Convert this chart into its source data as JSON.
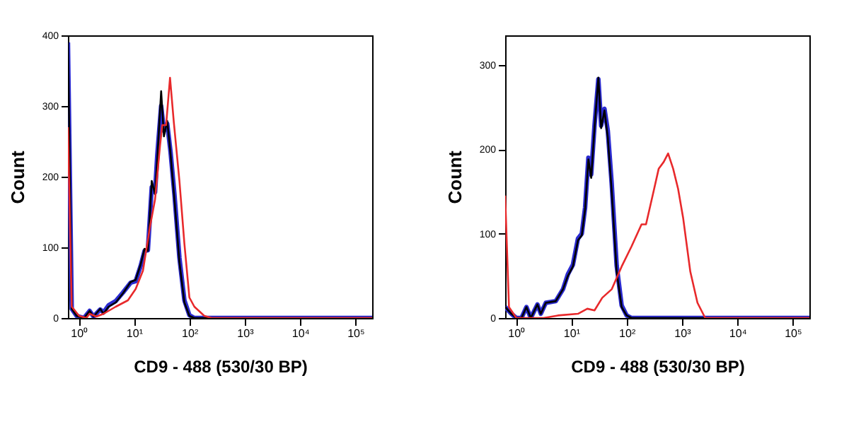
{
  "chart_data": [
    {
      "type": "line",
      "xlabel": "CD9 - 488 (530/30 BP)",
      "ylabel": "Count",
      "log": "x",
      "xlim": [
        0.64,
        200000
      ],
      "ylim": [
        0,
        400
      ],
      "xticks": [
        {
          "value": 1,
          "label": "10⁰"
        },
        {
          "value": 10,
          "label": "10¹"
        },
        {
          "value": 100,
          "label": "10²"
        },
        {
          "value": 1000,
          "label": "10³"
        },
        {
          "value": 10000,
          "label": "10⁴"
        },
        {
          "value": 100000,
          "label": "10⁵"
        }
      ],
      "yticks": [
        0,
        100,
        200,
        300,
        400
      ],
      "grid": false,
      "marker": "none",
      "line_style": "solid",
      "series": [
        {
          "color": "#2b2bd0",
          "x": [
            0.64,
            0.75,
            0.92,
            1.25,
            1.58,
            1.86,
            2.45,
            2.82,
            3.47,
            4.68,
            6.31,
            8.71,
            10.7,
            13.2,
            15.5,
            17.8,
            20.9,
            24.0,
            26.3,
            30.9,
            34.7,
            39.8,
            45.7,
            53.7,
            66.1,
            81.3,
            100,
            123,
            200000
          ],
          "values": [
            390,
            13,
            3,
            0,
            10,
            2,
            12,
            8,
            18,
            24,
            36,
            50,
            52,
            74,
            95,
            96,
            185,
            178,
            230,
            300,
            265,
            275,
            235,
            175,
            85,
            25,
            4,
            0,
            0
          ]
        },
        {
          "color": "#000000",
          "x": [
            0.64,
            0.75,
            0.92,
            1.25,
            1.58,
            1.86,
            2.45,
            2.82,
            3.47,
            4.68,
            6.31,
            8.71,
            10.7,
            13.2,
            15.5,
            17.8,
            20.9,
            24.0,
            26.3,
            30.9,
            34.7,
            39.8,
            45.7,
            53.7,
            66.1,
            81.3,
            100,
            123,
            200000
          ],
          "values": [
            397,
            13,
            3,
            0,
            10,
            2,
            13,
            6,
            16,
            22,
            35,
            51,
            54,
            76,
            98,
            95,
            194,
            175,
            225,
            321,
            257,
            279,
            232,
            168,
            79,
            22,
            3,
            0,
            0
          ]
        },
        {
          "color": "#e8292b",
          "x": [
            0.64,
            0.75,
            1.02,
            1.38,
            1.58,
            2.09,
            2.82,
            4.68,
            7.76,
            10.7,
            14.5,
            19.5,
            24.0,
            29.5,
            32.4,
            38.0,
            44.7,
            52.5,
            66.1,
            81.3,
            100,
            123,
            186,
            251,
            200000
          ],
          "values": [
            270,
            16,
            3,
            0,
            6,
            2,
            6,
            16,
            25,
            41,
            67,
            130,
            168,
            244,
            273,
            273,
            340,
            276,
            194,
            105,
            29,
            16,
            3,
            0,
            0
          ]
        }
      ]
    },
    {
      "type": "line",
      "xlabel": "CD9 - 488 (530/30 BP)",
      "ylabel": "Count",
      "log": "x",
      "xlim": [
        0.64,
        200000
      ],
      "ylim": [
        0,
        335
      ],
      "xticks": [
        {
          "value": 1,
          "label": "10⁰"
        },
        {
          "value": 10,
          "label": "10¹"
        },
        {
          "value": 100,
          "label": "10²"
        },
        {
          "value": 1000,
          "label": "10³"
        },
        {
          "value": 10000,
          "label": "10⁴"
        },
        {
          "value": 100000,
          "label": "10⁵"
        }
      ],
      "yticks": [
        0,
        100,
        200,
        300
      ],
      "grid": false,
      "marker": "none",
      "line_style": "solid",
      "series": [
        {
          "color": "#2b2bd0",
          "x": [
            0.64,
            0.83,
            1.02,
            1.26,
            1.55,
            1.86,
            2.45,
            2.82,
            3.47,
            5.25,
            7.08,
            8.71,
            10.7,
            13.2,
            15.5,
            17.8,
            20.4,
            22.9,
            26.3,
            30.9,
            34.7,
            39.8,
            45.7,
            53.7,
            66.1,
            81.3,
            100,
            123,
            200000
          ],
          "values": [
            13,
            5,
            0,
            0,
            13,
            0,
            16,
            5,
            18,
            20,
            34,
            52,
            63,
            94,
            100,
            131,
            190,
            170,
            228,
            283,
            228,
            248,
            222,
            160,
            62,
            15,
            3,
            0,
            0
          ]
        },
        {
          "color": "#000000",
          "x": [
            0.64,
            0.83,
            1.02,
            1.26,
            1.55,
            1.86,
            2.45,
            2.82,
            3.47,
            5.25,
            7.08,
            8.71,
            10.7,
            13.2,
            15.5,
            17.8,
            20.4,
            22.9,
            26.3,
            30.9,
            34.7,
            39.8,
            45.7,
            53.7,
            66.1,
            81.3,
            100,
            123,
            200000
          ],
          "values": [
            13,
            5,
            0,
            0,
            13,
            0,
            16,
            5,
            18,
            20,
            34,
            50,
            61,
            92,
            98,
            129,
            188,
            166,
            225,
            285,
            225,
            246,
            214,
            151,
            55,
            13,
            3,
            0,
            0
          ]
        },
        {
          "color": "#e8292b",
          "x": [
            0.64,
            0.75,
            1.02,
            3.16,
            5.75,
            13.2,
            19.5,
            26.3,
            36.3,
            53.7,
            81.3,
            123,
            186,
            224,
            309,
            380,
            468,
            562,
            692,
            851,
            1047,
            1413,
            1905,
            2630,
            200000
          ],
          "values": [
            145,
            13,
            0,
            0,
            3,
            5,
            11,
            9,
            24,
            34,
            61,
            85,
            111,
            111,
            151,
            177,
            185,
            195,
            177,
            153,
            119,
            55,
            18,
            0,
            0
          ]
        }
      ]
    }
  ]
}
